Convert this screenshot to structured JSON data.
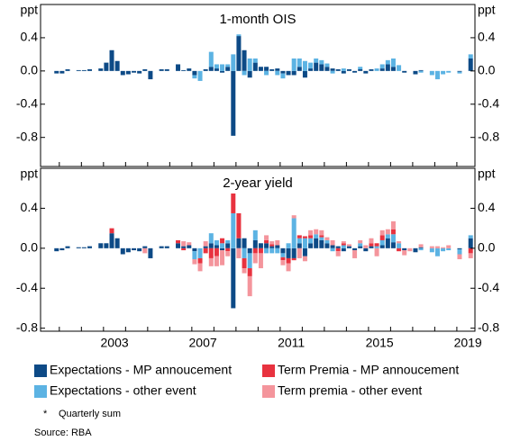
{
  "chart_data": [
    {
      "type": "bar",
      "stacked": true,
      "title": "1-month OIS",
      "y_label": "ppt",
      "x": [
        2000.625,
        2000.875,
        2001.125,
        2001.375,
        2001.625,
        2001.875,
        2002.125,
        2002.375,
        2002.625,
        2002.875,
        2003.125,
        2003.375,
        2003.625,
        2003.875,
        2004.125,
        2004.375,
        2004.625,
        2004.875,
        2005.125,
        2005.375,
        2005.625,
        2005.875,
        2006.125,
        2006.375,
        2006.625,
        2006.875,
        2007.125,
        2007.375,
        2007.625,
        2007.875,
        2008.125,
        2008.375,
        2008.625,
        2008.875,
        2009.125,
        2009.375,
        2009.625,
        2009.875,
        2010.125,
        2010.375,
        2010.625,
        2010.875,
        2011.125,
        2011.375,
        2011.625,
        2011.875,
        2012.125,
        2012.375,
        2012.625,
        2012.875,
        2013.125,
        2013.375,
        2013.625,
        2013.875,
        2014.125,
        2014.375,
        2014.625,
        2014.875,
        2015.125,
        2015.375,
        2015.625,
        2015.875,
        2016.125,
        2016.375,
        2016.625,
        2016.875,
        2017.125,
        2017.375,
        2017.625,
        2017.875,
        2018.125,
        2018.375,
        2018.625,
        2018.875,
        2019.125,
        2019.375,
        2019.625
      ],
      "xlim": [
        2000.15,
        2019.82
      ],
      "ylim": [
        -1.15,
        0.8
      ],
      "yticks": [
        0.4,
        {
          "value": 0,
          "label": "0.0"
        },
        -0.4,
        -0.8
      ],
      "series": [
        {
          "color": "#0d4a86",
          "values": [
            0,
            -0.03,
            -0.03,
            0.02,
            0,
            0.01,
            0.01,
            0.02,
            0,
            0.03,
            0.1,
            0.25,
            0.12,
            -0.05,
            -0.04,
            -0.02,
            -0.03,
            0.02,
            -0.1,
            0,
            0.02,
            0.02,
            0,
            0.08,
            0.01,
            0.03,
            -0.05,
            0,
            0.02,
            0.05,
            0.03,
            -0.02,
            0.05,
            -0.78,
            0.42,
            0.25,
            -0.08,
            0.1,
            0.05,
            0.05,
            0.02,
            0.03,
            -0.03,
            -0.05,
            -0.05,
            0.05,
            -0.08,
            0.03,
            0.1,
            0.08,
            0.05,
            0.03,
            0.02,
            -0.03,
            0.02,
            -0.02,
            0.02,
            -0.03,
            0.02,
            0,
            0.03,
            0.08,
            0.05,
            0,
            -0.02,
            0,
            -0.04,
            0.01,
            0,
            0,
            0,
            0,
            0,
            0,
            -0.01,
            0,
            0.15
          ]
        },
        {
          "color": "#5cb3e3",
          "values": [
            0,
            0,
            0,
            0,
            0,
            0,
            0,
            0,
            0,
            0,
            0,
            0,
            0,
            0,
            0,
            0,
            0,
            0,
            0,
            0,
            0,
            0,
            0,
            0,
            0,
            0,
            -0.04,
            -0.12,
            0,
            0.18,
            0.05,
            0.08,
            0.03,
            0.2,
            0.02,
            -0.05,
            0.15,
            0.05,
            0,
            -0.05,
            0,
            -0.05,
            -0.06,
            0,
            0.15,
            0.1,
            0.12,
            0.07,
            0.05,
            0.05,
            0.04,
            -0.03,
            0,
            0.03,
            0,
            0,
            0.03,
            0,
            0,
            0.03,
            0.05,
            0.05,
            0.1,
            0.07,
            0,
            0,
            0,
            -0.02,
            0,
            -0.05,
            -0.1,
            -0.04,
            -0.02,
            0,
            -0.02,
            0,
            0.05
          ]
        }
      ]
    },
    {
      "type": "bar",
      "stacked": true,
      "title": "2-year yield",
      "y_label": "ppt",
      "x": [
        2000.625,
        2000.875,
        2001.125,
        2001.375,
        2001.625,
        2001.875,
        2002.125,
        2002.375,
        2002.625,
        2002.875,
        2003.125,
        2003.375,
        2003.625,
        2003.875,
        2004.125,
        2004.375,
        2004.625,
        2004.875,
        2005.125,
        2005.375,
        2005.625,
        2005.875,
        2006.125,
        2006.375,
        2006.625,
        2006.875,
        2007.125,
        2007.375,
        2007.625,
        2007.875,
        2008.125,
        2008.375,
        2008.625,
        2008.875,
        2009.125,
        2009.375,
        2009.625,
        2009.875,
        2010.125,
        2010.375,
        2010.625,
        2010.875,
        2011.125,
        2011.375,
        2011.625,
        2011.875,
        2012.125,
        2012.375,
        2012.625,
        2012.875,
        2013.125,
        2013.375,
        2013.625,
        2013.875,
        2014.125,
        2014.375,
        2014.625,
        2014.875,
        2015.125,
        2015.375,
        2015.625,
        2015.875,
        2016.125,
        2016.375,
        2016.625,
        2016.875,
        2017.125,
        2017.375,
        2017.625,
        2017.875,
        2018.125,
        2018.375,
        2018.625,
        2018.875,
        2019.125,
        2019.375,
        2019.625
      ],
      "xlim": [
        2000.15,
        2019.82
      ],
      "xticks": [
        {
          "value": 2003.5,
          "label": "2003"
        },
        {
          "value": 2007.5,
          "label": "2007"
        },
        {
          "value": 2011.5,
          "label": "2011"
        },
        {
          "value": 2015.5,
          "label": "2015"
        },
        {
          "value": 2019.5,
          "label": "2019"
        }
      ],
      "ylim": [
        -0.83,
        0.8
      ],
      "yticks": [
        0.4,
        {
          "value": 0,
          "label": "0.0"
        },
        -0.4,
        -0.8
      ],
      "series": [
        {
          "name": "Expectations - MP annoucement",
          "color": "#0d4a86",
          "values": [
            0,
            -0.03,
            -0.02,
            0.02,
            0,
            0.01,
            0.01,
            0.02,
            0,
            0.05,
            0.05,
            0.15,
            0.1,
            -0.06,
            -0.04,
            -0.02,
            -0.03,
            0.02,
            -0.1,
            0,
            0.02,
            0.02,
            0,
            0.05,
            0.02,
            0.03,
            -0.03,
            0,
            0.02,
            0.05,
            0.03,
            -0.02,
            0.05,
            -0.6,
            0.1,
            0.1,
            -0.05,
            0.08,
            0.05,
            0.05,
            0.02,
            0.03,
            -0.05,
            -0.1,
            -0.1,
            0.05,
            -0.08,
            0.05,
            0.1,
            0.08,
            0.05,
            0.03,
            0.02,
            -0.03,
            0.02,
            -0.02,
            0.02,
            -0.03,
            0.02,
            0,
            0.03,
            0.1,
            0.06,
            0,
            -0.02,
            0,
            -0.04,
            0.01,
            0,
            0,
            0,
            0,
            0,
            0,
            -0.01,
            0,
            0.1
          ]
        },
        {
          "name": "Expectations - other event",
          "color": "#5cb3e3",
          "values": [
            0,
            0,
            0,
            0,
            0,
            0,
            0,
            0,
            0,
            0,
            0,
            0,
            0,
            0,
            0,
            0,
            0,
            0,
            0,
            0,
            0,
            0,
            0,
            0,
            0,
            0,
            -0.08,
            -0.1,
            0,
            0.1,
            0.05,
            0.05,
            0.03,
            0.35,
            0,
            -0.1,
            -0.15,
            0.1,
            0,
            -0.05,
            -0.05,
            -0.05,
            -0.04,
            0.05,
            0.3,
            0.05,
            0.1,
            0.05,
            0.04,
            0.03,
            0.03,
            -0.03,
            0,
            0.03,
            0,
            0,
            0.03,
            0,
            0,
            0.02,
            0.05,
            0.04,
            0.08,
            0.05,
            0,
            0,
            0,
            -0.02,
            0,
            -0.04,
            -0.08,
            -0.03,
            -0.02,
            0,
            -0.05,
            0,
            0.03
          ]
        },
        {
          "name": "Term Premia  - MP annoucement",
          "color": "#e8323f",
          "values": [
            0,
            0,
            0,
            0,
            0,
            0,
            0,
            0,
            0,
            0,
            0,
            0.05,
            0,
            0,
            0,
            0,
            0,
            0,
            0,
            0,
            0,
            0,
            0,
            0.03,
            -0.02,
            0,
            0,
            -0.05,
            -0.05,
            -0.1,
            -0.08,
            0.05,
            -0.03,
            0.3,
            0.25,
            -0.1,
            -0.08,
            -0.05,
            -0.05,
            0.03,
            0.02,
            0,
            -0.03,
            -0.05,
            -0.02,
            0.03,
            0.02,
            0.03,
            0,
            0.02,
            0,
            0,
            -0.03,
            0.02,
            0,
            0,
            0,
            0,
            0.03,
            0.03,
            0.05,
            0,
            0.05,
            -0.03,
            0,
            0,
            0,
            0,
            0,
            0,
            0,
            0,
            0,
            0,
            0,
            0,
            -0.05
          ]
        },
        {
          "name": "Term premia - other event",
          "color": "#f4959c",
          "values": [
            0,
            0,
            0,
            0,
            0,
            0,
            0,
            0,
            0,
            0,
            0,
            0,
            0,
            0,
            0,
            0,
            0,
            -0.05,
            0,
            0,
            0,
            0,
            0,
            0,
            0.05,
            0.03,
            -0.05,
            -0.08,
            0.05,
            -0.08,
            -0.1,
            -0.15,
            -0.05,
            0,
            -0.1,
            -0.05,
            -0.2,
            -0.1,
            -0.15,
            0.05,
            0.03,
            0.05,
            -0.05,
            -0.08,
            0.03,
            -0.1,
            -0.05,
            0.05,
            0.05,
            0.05,
            0.03,
            0.05,
            -0.05,
            0.02,
            0.02,
            -0.08,
            0.03,
            0.03,
            0.05,
            -0.08,
            0.05,
            0.05,
            0.08,
            0.02,
            -0.05,
            -0.03,
            0,
            0.03,
            0,
            0.02,
            0.02,
            0.01,
            0.03,
            0,
            -0.05,
            0,
            -0.05
          ]
        }
      ]
    }
  ],
  "notes": {
    "marker": "*",
    "text": "Quarterly sum",
    "source": "Source: RBA"
  }
}
